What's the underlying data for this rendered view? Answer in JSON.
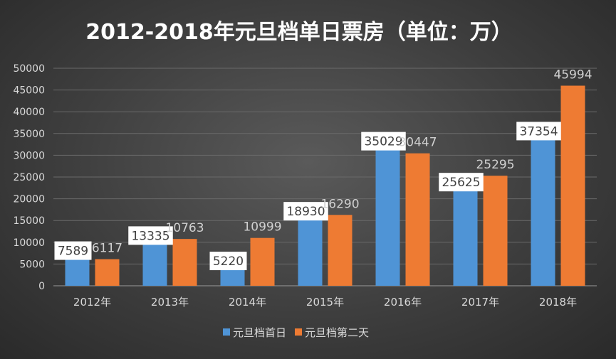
{
  "chart_data": {
    "type": "bar",
    "title": "2012-2018年元旦档单日票房（单位：万）",
    "categories": [
      "2012年",
      "2013年",
      "2014年",
      "2015年",
      "2016年",
      "2017年",
      "2018年"
    ],
    "series": [
      {
        "name": "元旦档首日",
        "color": "#4f94d6",
        "values": [
          7589,
          13335,
          5220,
          18930,
          35029,
          25625,
          37354
        ]
      },
      {
        "name": "元旦档第二天",
        "color": "#ee7b33",
        "values": [
          6117,
          10763,
          10999,
          16290,
          30447,
          25295,
          45994
        ]
      }
    ],
    "ylim": [
      0,
      50000
    ],
    "yticks": [
      0,
      5000,
      10000,
      15000,
      20000,
      25000,
      30000,
      35000,
      40000,
      45000,
      50000
    ],
    "grid": true,
    "legend": "bottom",
    "xlabel": "",
    "ylabel": ""
  }
}
